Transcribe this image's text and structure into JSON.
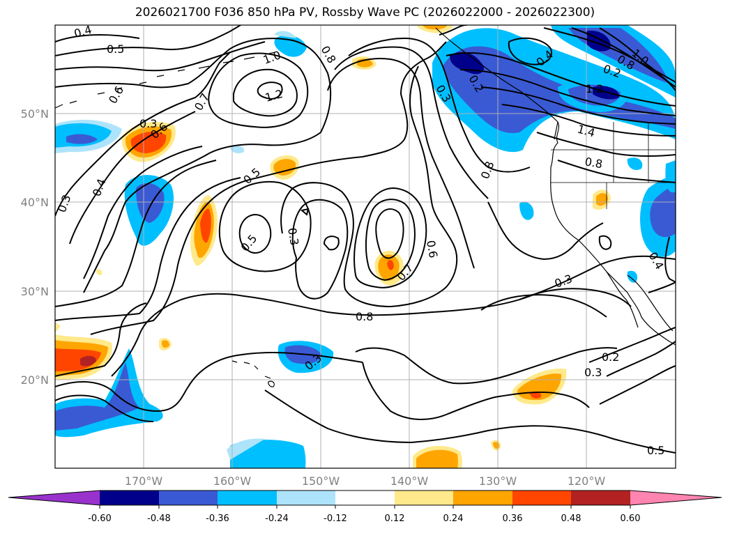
{
  "title": "2026021700 F036 850 hPa PV, Rossby Wave PC (2026022000 - 2026022300)",
  "colors": {
    "neg_ext": "#9932cc",
    "neg_060": "#00008b",
    "neg_048": "#3a5ad4",
    "neg_036": "#00bfff",
    "neg_024": "#aee4fb",
    "pos_012": "#ffe98a",
    "pos_024": "#ffa500",
    "pos_036": "#ff4500",
    "pos_048": "#b22222",
    "pos_ext": "#ff85b0",
    "contour": "#000000",
    "grid": "#b0b0b0",
    "coast": "#000000"
  },
  "axes": {
    "lon_labels": [
      "170°W",
      "160°W",
      "150°W",
      "140°W",
      "130°W",
      "120°W"
    ],
    "lat_labels": [
      "50°N",
      "40°N",
      "30°N",
      "20°N"
    ]
  },
  "colorbar": {
    "ticks": [
      "-0.60",
      "-0.48",
      "-0.36",
      "-0.24",
      "-0.12",
      "0.12",
      "0.24",
      "0.36",
      "0.48",
      "0.60"
    ]
  },
  "contour_labels": [
    "0.4",
    "0.5",
    "0.6",
    "0.7",
    "0.8",
    "1.0",
    "1.2",
    "0.3",
    "0.4",
    "0.5",
    "0.6",
    "0.3",
    "0.5",
    "0.6",
    "0.7",
    "0.8",
    "0.8",
    "0.3",
    "0.3",
    "0.2",
    "0.3",
    "0.5",
    "0.4",
    "0.2",
    "0.8",
    "1.0",
    "1.2",
    "1.4",
    "0.8",
    "0.4",
    "0.3",
    "0.2",
    "0.3",
    "0.6"
  ]
}
